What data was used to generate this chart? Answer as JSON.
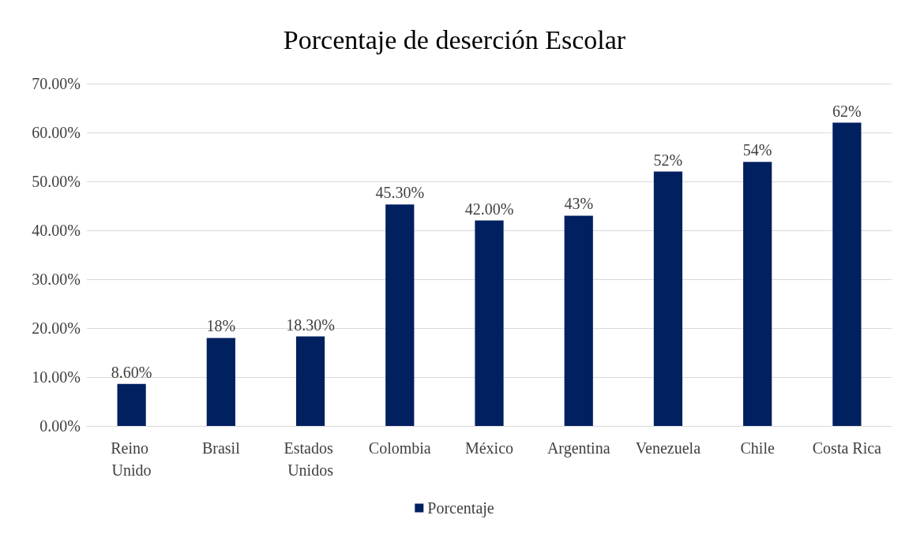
{
  "chart_data": {
    "type": "bar",
    "title": "Porcentaje de deserción Escolar",
    "categories": [
      "Reino Unido",
      "Brasil",
      "Estados Unidos",
      "Colombia",
      "México",
      "Argentina",
      "Venezuela",
      "Chile",
      "Costa Rica"
    ],
    "series": [
      {
        "name": "Porcentaje",
        "color": "#002060",
        "values": [
          8.6,
          18,
          18.3,
          45.3,
          42,
          43,
          52,
          54,
          62
        ],
        "value_labels": [
          "8.60%",
          "18%",
          "18.30%",
          "45.30%",
          "42.00%",
          "43%",
          "52%",
          "54%",
          "62%"
        ]
      }
    ],
    "ylim": [
      0,
      70
    ],
    "yticks": [
      {
        "value": 0,
        "label": "0.00%"
      },
      {
        "value": 10,
        "label": "10.00%"
      },
      {
        "value": 20,
        "label": "20.00%"
      },
      {
        "value": 30,
        "label": "30.00%"
      },
      {
        "value": 40,
        "label": "40.00%"
      },
      {
        "value": 50,
        "label": "50.00%"
      },
      {
        "value": 60,
        "label": "60.00%"
      },
      {
        "value": 70,
        "label": "70.00%"
      }
    ],
    "grid": "y",
    "legend": "bottom"
  }
}
